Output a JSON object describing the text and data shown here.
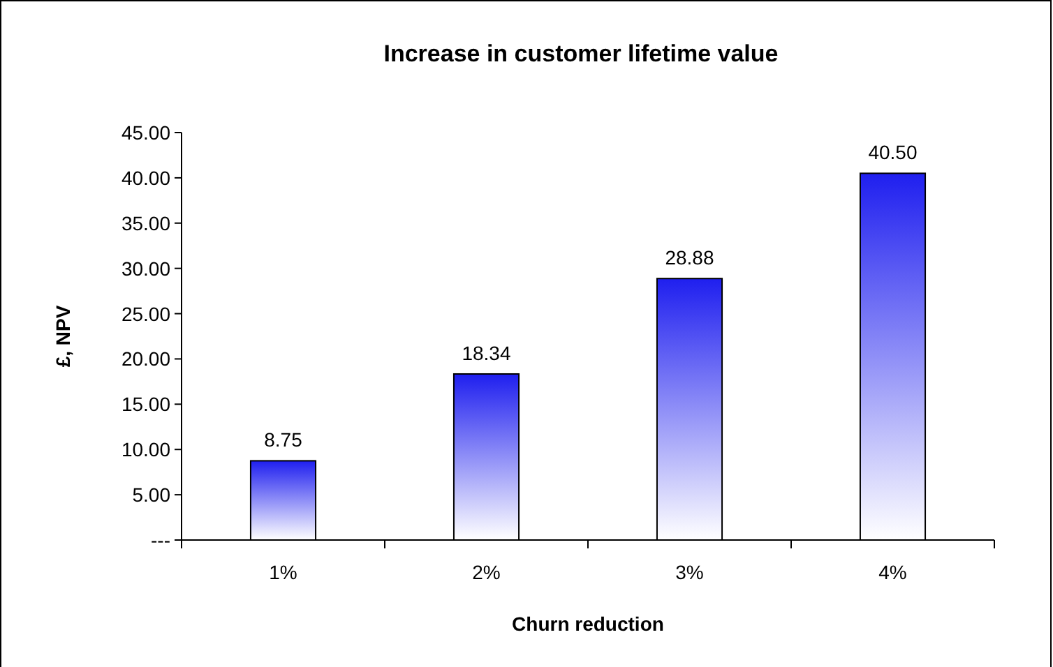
{
  "chart_data": {
    "type": "bar",
    "title": "Increase in customer lifetime value",
    "xlabel": "Churn reduction",
    "ylabel": "£, NPV",
    "categories": [
      "1%",
      "2%",
      "3%",
      "4%"
    ],
    "values": [
      8.75,
      18.34,
      28.88,
      40.5
    ],
    "value_labels": [
      "8.75",
      "18.34",
      "28.88",
      "40.50"
    ],
    "color": "#1f1fef",
    "ylim": [
      0,
      45
    ],
    "yticks": [
      {
        "value": 0,
        "label": "---"
      },
      {
        "value": 5,
        "label": "5.00"
      },
      {
        "value": 10,
        "label": "10.00"
      },
      {
        "value": 15,
        "label": "15.00"
      },
      {
        "value": 20,
        "label": "20.00"
      },
      {
        "value": 25,
        "label": "25.00"
      },
      {
        "value": 30,
        "label": "30.00"
      },
      {
        "value": 35,
        "label": "35.00"
      },
      {
        "value": 40,
        "label": "40.00"
      },
      {
        "value": 45,
        "label": "45.00"
      }
    ],
    "grid": false
  }
}
